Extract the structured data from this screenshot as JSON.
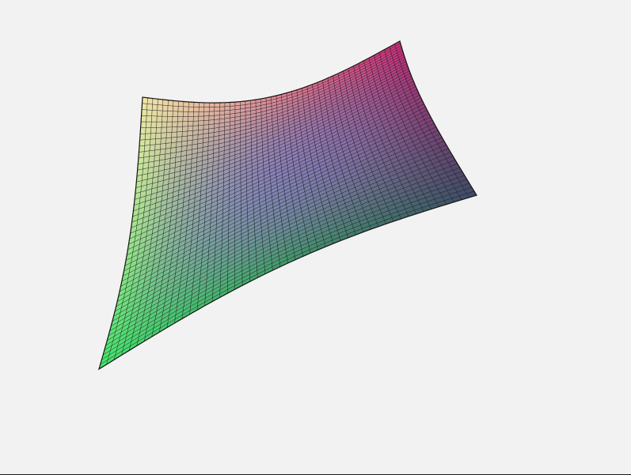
{
  "window": {
    "background": "#f2f2f2",
    "border_color": "#1a1a1a"
  },
  "surface": {
    "type": "3d-mesh-surface",
    "grid_lines": 50,
    "mesh_line_color": "#141414",
    "corner_colors": {
      "near_left": "#43e66c",
      "back_left": "#f0e6a8",
      "back_right": "#d52e80",
      "near_right": "#3f4a68"
    },
    "center_color": "#7d74e0"
  }
}
